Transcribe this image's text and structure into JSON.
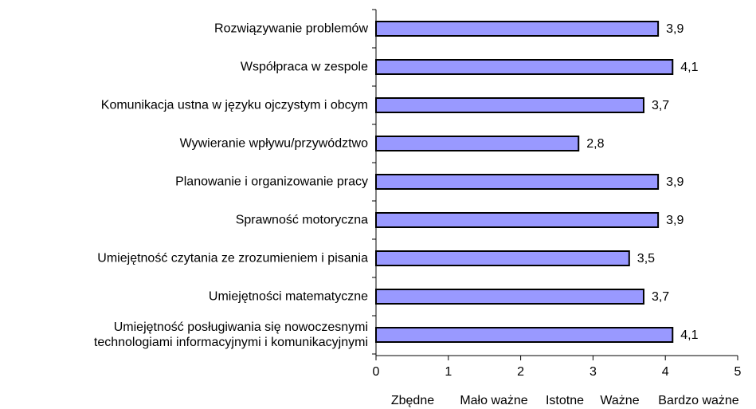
{
  "chart_data": {
    "type": "bar",
    "orientation": "horizontal",
    "categories": [
      "Rozwiązywanie problemów",
      "Współpraca w zespole",
      "Komunikacja ustna w języku ojczystym i obcym",
      "Wywieranie wpływu/przywództwo",
      "Planowanie i organizowanie pracy",
      "Sprawność motoryczna",
      "Umiejętność czytania ze zrozumieniem i pisania",
      "Umiejętności matematyczne",
      "Umiejętność posługiwania się nowoczesnymi\ntechnologiami informacyjnymi i komunikacyjnymi"
    ],
    "values": [
      3.9,
      4.1,
      3.7,
      2.8,
      3.9,
      3.9,
      3.5,
      3.7,
      4.1
    ],
    "value_labels": [
      "3,9",
      "4,1",
      "3,7",
      "2,8",
      "3,9",
      "3,9",
      "3,5",
      "3,7",
      "4,1"
    ],
    "color": "#9999ff",
    "xlim": [
      0,
      5
    ],
    "xticks": [
      0,
      1,
      2,
      3,
      4,
      5
    ],
    "annotations": [
      "Zbędne",
      "Mało ważne",
      "Istotne",
      "Ważne",
      "Bardzo ważne"
    ]
  }
}
